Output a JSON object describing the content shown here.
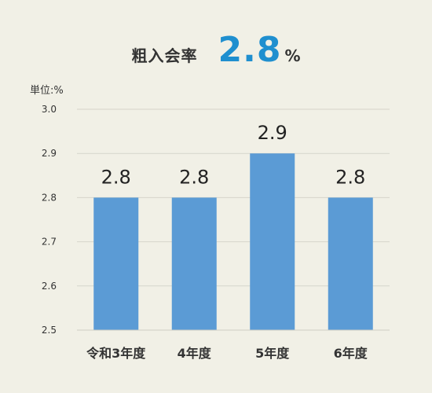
{
  "headline": {
    "label": "粗入会率",
    "value": "2.8",
    "unit": "%"
  },
  "chart_data": {
    "type": "bar",
    "unit_label": "単位:%",
    "categories": [
      "令和3年度",
      "4年度",
      "5年度",
      "6年度"
    ],
    "values": [
      2.8,
      2.8,
      2.9,
      2.8
    ],
    "data_labels": [
      "2.8",
      "2.8",
      "2.9",
      "2.8"
    ],
    "yticks": [
      "3.0",
      "2.9",
      "2.8",
      "2.7",
      "2.6",
      "2.5"
    ],
    "ylim": [
      2.5,
      3.0
    ],
    "grid": true,
    "bar_color": "#5b9bd5"
  }
}
